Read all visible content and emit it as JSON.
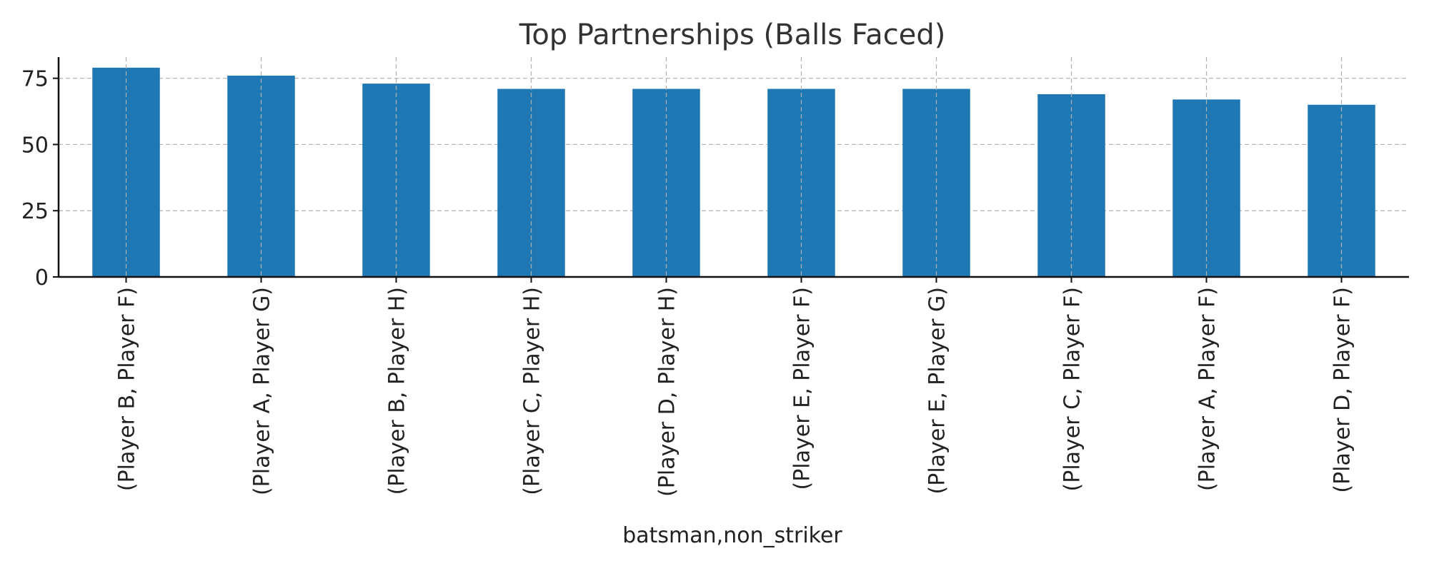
{
  "chart_data": {
    "type": "bar",
    "title": "Top Partnerships (Balls Faced)",
    "xlabel": "batsman,non_striker",
    "ylabel": "",
    "categories": [
      "(Player B, Player F)",
      "(Player A, Player G)",
      "(Player B, Player H)",
      "(Player C, Player H)",
      "(Player D, Player H)",
      "(Player E, Player F)",
      "(Player E, Player G)",
      "(Player C, Player F)",
      "(Player A, Player F)",
      "(Player D, Player F)"
    ],
    "values": [
      79,
      76,
      73,
      71,
      71,
      71,
      71,
      69,
      67,
      65
    ],
    "yticks": [
      0,
      25,
      50,
      75
    ],
    "ytick_labels": [
      "0",
      "25",
      "50",
      "75"
    ],
    "ylim": [
      0,
      83
    ],
    "grid": true,
    "legend": "none",
    "bar_color": "#1f77b4"
  }
}
